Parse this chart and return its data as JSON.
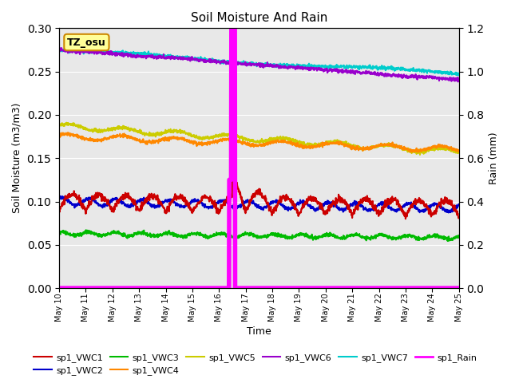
{
  "title": "Soil Moisture And Rain",
  "xlabel": "Time",
  "ylabel_left": "Soil Moisture (m3/m3)",
  "ylabel_right": "Rain (mm)",
  "annotation_label": "TZ_osu",
  "annotation_color_bg": "#ffff99",
  "annotation_color_border": "#cc8800",
  "ylim_left": [
    0.0,
    0.3
  ],
  "ylim_right": [
    0.0,
    1.2
  ],
  "background_color": "#e8e8e8",
  "figure_bg": "#ffffff",
  "series": {
    "sp1_VWC1": {
      "color": "#cc0000",
      "lw": 1.5
    },
    "sp1_VWC2": {
      "color": "#0000cc",
      "lw": 1.5
    },
    "sp1_VWC3": {
      "color": "#00bb00",
      "lw": 1.5
    },
    "sp1_VWC4": {
      "color": "#ff8800",
      "lw": 1.5
    },
    "sp1_VWC5": {
      "color": "#cccc00",
      "lw": 1.5
    },
    "sp1_VWC6": {
      "color": "#9900cc",
      "lw": 1.5
    },
    "sp1_VWC7": {
      "color": "#00cccc",
      "lw": 1.5
    },
    "sp1_Rain": {
      "color": "#ff00ff",
      "lw": 4.0
    }
  },
  "legend_order": [
    "sp1_VWC1",
    "sp1_VWC2",
    "sp1_VWC3",
    "sp1_VWC4",
    "sp1_VWC5",
    "sp1_VWC6",
    "sp1_VWC7",
    "sp1_Rain"
  ]
}
